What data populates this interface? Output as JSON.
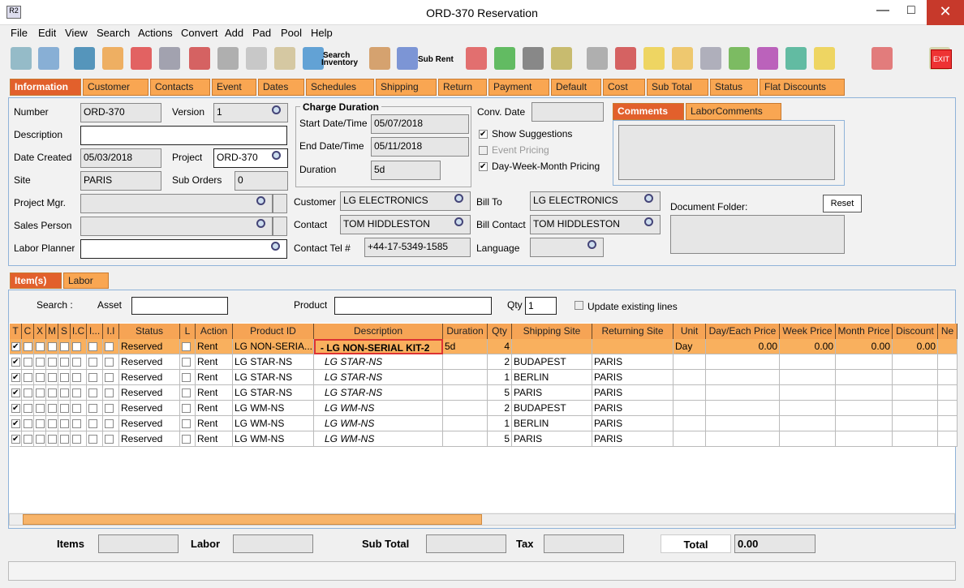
{
  "window": {
    "title": "ORD-370 Reservation"
  },
  "menu": [
    "File",
    "Edit",
    "View",
    "Search",
    "Actions",
    "Convert",
    "Add",
    "Pad",
    "Pool",
    "Help"
  ],
  "toolbar": {
    "search_inventory": [
      "Search",
      "Inventory"
    ],
    "sub_rent": "Sub Rent",
    "exit": "EXIT"
  },
  "tabs": [
    "Information",
    "Customer",
    "Contacts",
    "Event",
    "Dates",
    "Schedules",
    "Shipping",
    "Return",
    "Payment",
    "Default",
    "Cost",
    "Sub Total",
    "Status",
    "Flat Discounts"
  ],
  "form": {
    "number_label": "Number",
    "number": "ORD-370",
    "version_label": "Version",
    "version": "1",
    "description_label": "Description",
    "date_created_label": "Date Created",
    "date_created": "05/03/2018",
    "project_label": "Project",
    "project": "ORD-370",
    "site_label": "Site",
    "site": "PARIS",
    "sub_orders_label": "Sub Orders",
    "sub_orders": "0",
    "project_mgr_label": "Project Mgr.",
    "sales_person_label": "Sales Person",
    "labor_planner_label": "Labor Planner",
    "charge_duration_label": "Charge Duration",
    "start_label": "Start Date/Time",
    "start": "05/07/2018",
    "end_label": "End Date/Time",
    "end": "05/11/2018",
    "duration_label": "Duration",
    "duration": "5d",
    "customer_label": "Customer",
    "customer": "LG ELECTRONICS",
    "contact_label": "Contact",
    "contact": "TOM HIDDLESTON",
    "contact_tel_label": "Contact Tel #",
    "contact_tel": "+44-17-5349-1585",
    "conv_date_label": "Conv. Date",
    "show_suggestions": "Show Suggestions",
    "event_pricing": "Event Pricing",
    "dwm_pricing": "Day-Week-Month Pricing",
    "bill_to_label": "Bill To",
    "bill_to": "LG ELECTRONICS",
    "bill_contact_label": "Bill Contact",
    "bill_contact": "TOM HIDDLESTON",
    "language_label": "Language",
    "comment_tabs": [
      "Comments",
      "LaborComments"
    ],
    "document_folder_label": "Document Folder:",
    "reset": "Reset"
  },
  "subtabs": [
    "Item(s)",
    "Labor"
  ],
  "search": {
    "search_label": "Search :",
    "asset_label": "Asset",
    "product_label": "Product",
    "qty_label": "Qty",
    "qty": "1",
    "update_existing": "Update existing lines"
  },
  "table": {
    "columns": [
      "T",
      "C",
      "X",
      "M",
      "S",
      "I.C",
      "I...",
      "I.I",
      "Status",
      "L",
      "Action",
      "Product ID",
      "Description",
      "Duration",
      "Qty",
      "Shipping Site",
      "Returning Site",
      "Unit",
      "Day/Each Price",
      "Week Price",
      "Month Price",
      "Discount",
      "Ne"
    ],
    "rows": [
      [
        "Reserved",
        "Rent",
        "LG NON-SERIA...",
        "- LG NON-SERIAL KIT-2",
        "5d",
        4,
        null,
        null,
        "Day",
        "0.00",
        "0.00",
        "0.00",
        "0.00"
      ],
      [
        "Reserved",
        "Rent",
        "LG STAR-NS",
        "LG STAR-NS",
        null,
        2,
        "BUDAPEST",
        "PARIS",
        null,
        null,
        null,
        null,
        null
      ],
      [
        "Reserved",
        "Rent",
        "LG STAR-NS",
        "LG STAR-NS",
        null,
        1,
        "BERLIN",
        "PARIS",
        null,
        null,
        null,
        null,
        null
      ],
      [
        "Reserved",
        "Rent",
        "LG STAR-NS",
        "LG STAR-NS",
        null,
        5,
        "PARIS",
        "PARIS",
        null,
        null,
        null,
        null,
        null
      ],
      [
        "Reserved",
        "Rent",
        "LG WM-NS",
        "LG WM-NS",
        null,
        2,
        "BUDAPEST",
        "PARIS",
        null,
        null,
        null,
        null,
        null
      ],
      [
        "Reserved",
        "Rent",
        "LG WM-NS",
        "LG WM-NS",
        null,
        1,
        "BERLIN",
        "PARIS",
        null,
        null,
        null,
        null,
        null
      ],
      [
        "Reserved",
        "Rent",
        "LG WM-NS",
        "LG WM-NS",
        null,
        5,
        "PARIS",
        "PARIS",
        null,
        null,
        null,
        null,
        null
      ]
    ]
  },
  "footer": {
    "items_label": "Items",
    "labor_label": "Labor",
    "sub_total_label": "Sub Total",
    "tax_label": "Tax",
    "total_label": "Total",
    "total": "0.00"
  }
}
